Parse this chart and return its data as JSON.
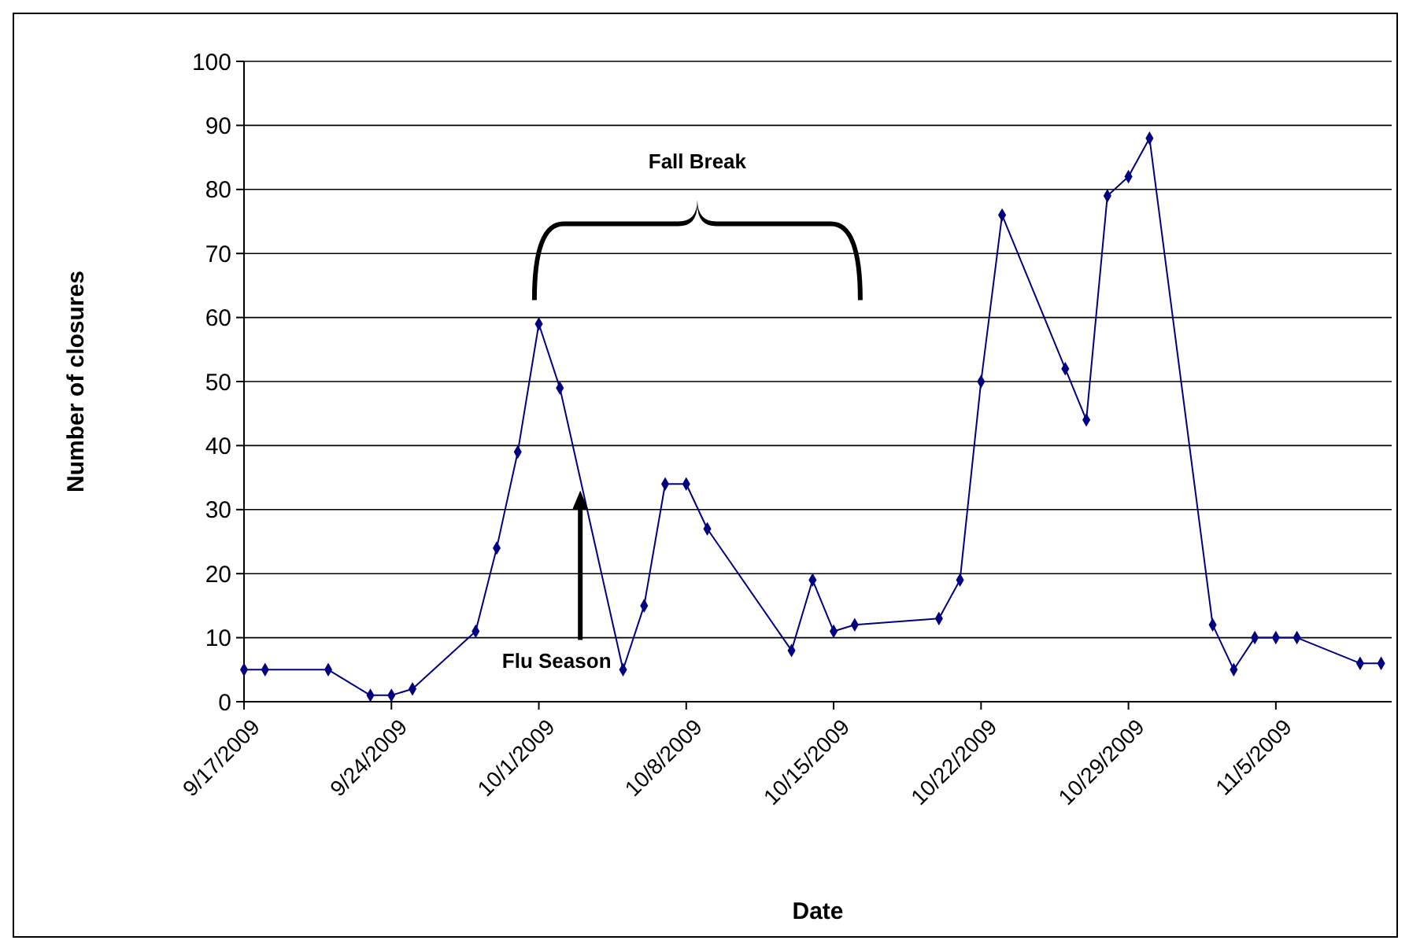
{
  "chart_data": {
    "type": "line",
    "xlabel": "Date",
    "ylabel": "Number of closures",
    "x": [
      "2009-09-17",
      "2009-09-18",
      "2009-09-21",
      "2009-09-23",
      "2009-09-24",
      "2009-09-25",
      "2009-09-28",
      "2009-09-29",
      "2009-09-30",
      "2009-10-01",
      "2009-10-02",
      "2009-10-05",
      "2009-10-06",
      "2009-10-07",
      "2009-10-08",
      "2009-10-09",
      "2009-10-13",
      "2009-10-14",
      "2009-10-15",
      "2009-10-16",
      "2009-10-20",
      "2009-10-21",
      "2009-10-22",
      "2009-10-23",
      "2009-10-26",
      "2009-10-27",
      "2009-10-28",
      "2009-10-29",
      "2009-10-30",
      "2009-11-02",
      "2009-11-03",
      "2009-11-04",
      "2009-11-05",
      "2009-11-06",
      "2009-11-09",
      "2009-11-10"
    ],
    "series": [
      {
        "color": "#000080",
        "values": [
          5,
          5,
          5,
          1,
          1,
          2,
          11,
          24,
          39,
          59,
          49,
          5,
          15,
          34,
          34,
          27,
          8,
          19,
          11,
          12,
          13,
          19,
          50,
          76,
          52,
          44,
          79,
          82,
          88,
          12,
          5,
          10,
          10,
          10,
          6,
          6
        ]
      }
    ],
    "xlim": [
      "2009-09-17",
      "2009-11-10T12:00"
    ],
    "xticks": [
      {
        "value": "2009-09-17",
        "label": "9/17/2009"
      },
      {
        "value": "2009-09-24",
        "label": "9/24/2009"
      },
      {
        "value": "2009-10-01",
        "label": "10/1/2009"
      },
      {
        "value": "2009-10-08",
        "label": "10/8/2009"
      },
      {
        "value": "2009-10-15",
        "label": "10/15/2009"
      },
      {
        "value": "2009-10-22",
        "label": "10/22/2009"
      },
      {
        "value": "2009-10-29",
        "label": "10/29/2009"
      },
      {
        "value": "2009-11-05",
        "label": "11/5/2009"
      }
    ],
    "ylim": [
      0,
      100
    ],
    "yticks": [
      0,
      10,
      20,
      30,
      40,
      50,
      60,
      70,
      80,
      90,
      100
    ],
    "grid": "y",
    "marker": "diamond",
    "line_style": "solid",
    "annotations": [
      "Fall Break",
      "Flu Season"
    ]
  }
}
